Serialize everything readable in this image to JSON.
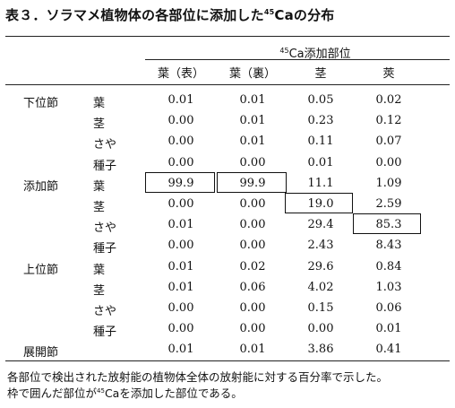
{
  "title": {
    "prefix": "表３．ソラマメ植物体の各部位に添加した",
    "isotope_mass": "45",
    "element": "Ca",
    "suffix": "の分布"
  },
  "header": {
    "group_label_mass": "45",
    "group_label_rest": "Ca添加部位",
    "columns": [
      "葉（表）",
      "葉（裏）",
      "茎",
      "莢"
    ]
  },
  "rows": [
    {
      "group": "下位節",
      "part": "葉",
      "values": [
        "0.01",
        "0.01",
        "0.05",
        "0.02"
      ]
    },
    {
      "group": "",
      "part": "茎",
      "values": [
        "0.00",
        "0.01",
        "0.23",
        "0.12"
      ]
    },
    {
      "group": "",
      "part": "さや",
      "values": [
        "0.00",
        "0.01",
        "0.11",
        "0.07"
      ]
    },
    {
      "group": "",
      "part": "種子",
      "values": [
        "0.00",
        "0.00",
        "0.01",
        "0.00"
      ]
    },
    {
      "group": "添加節",
      "part": "葉",
      "values": [
        "99.9",
        "99.9",
        "11.1",
        "1.09"
      ]
    },
    {
      "group": "",
      "part": "茎",
      "values": [
        "0.00",
        "0.00",
        "19.0",
        "2.59"
      ]
    },
    {
      "group": "",
      "part": "さや",
      "values": [
        "0.01",
        "0.00",
        "29.4",
        "85.3"
      ]
    },
    {
      "group": "",
      "part": "種子",
      "values": [
        "0.00",
        "0.00",
        "2.43",
        "8.43"
      ]
    },
    {
      "group": "上位節",
      "part": "葉",
      "values": [
        "0.01",
        "0.02",
        "29.6",
        "0.84"
      ]
    },
    {
      "group": "",
      "part": "茎",
      "values": [
        "0.01",
        "0.06",
        "4.02",
        "1.03"
      ]
    },
    {
      "group": "",
      "part": "さや",
      "values": [
        "0.00",
        "0.00",
        "0.15",
        "0.06"
      ]
    },
    {
      "group": "",
      "part": "種子",
      "values": [
        "0.00",
        "0.00",
        "0.00",
        "0.01"
      ]
    },
    {
      "group": "展開節",
      "part": "",
      "values": [
        "0.01",
        "0.01",
        "3.86",
        "0.41"
      ]
    }
  ],
  "boxed_cells": [
    [
      4,
      0
    ],
    [
      4,
      1
    ],
    [
      5,
      2
    ],
    [
      6,
      3
    ]
  ],
  "note": {
    "line1": "各部位で検出された放射能の植物体全体の放射能に対する百分率で示した。",
    "line2_prefix": "枠で囲んだ部位が",
    "line2_mass": "45",
    "line2_suffix": "Caを添加した部位である。"
  }
}
